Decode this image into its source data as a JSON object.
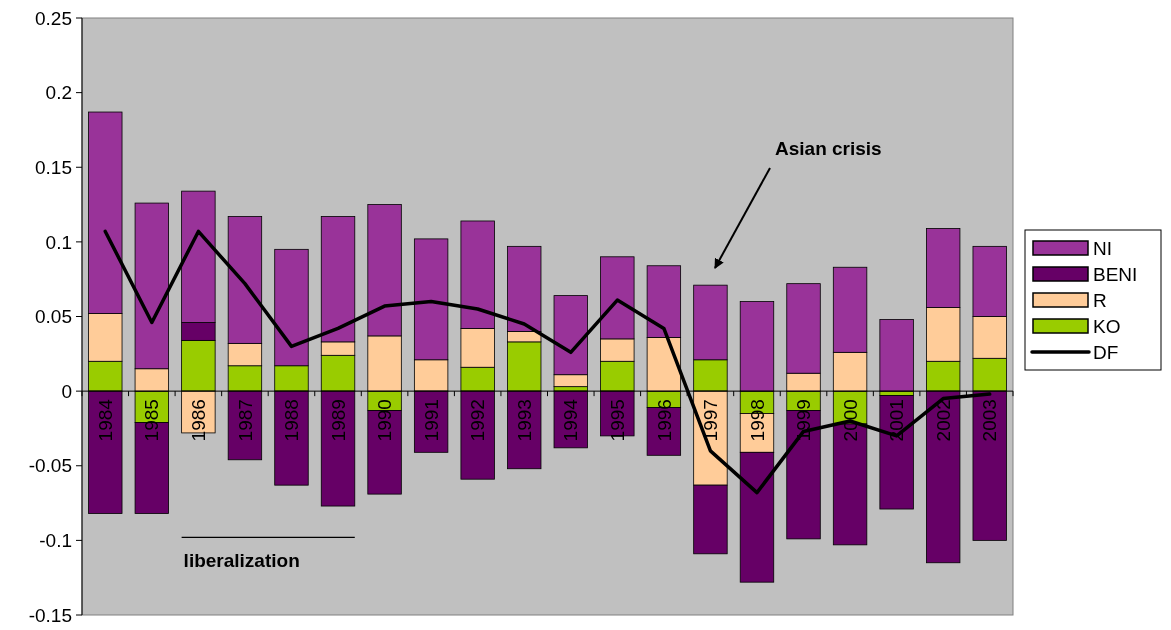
{
  "chart_data": {
    "type": "bar",
    "stacked": true,
    "categories": [
      "1984",
      "1985",
      "1986",
      "1987",
      "1988",
      "1989",
      "1990",
      "1991",
      "1992",
      "1993",
      "1994",
      "1995",
      "1996",
      "1997",
      "1998",
      "1999",
      "2000",
      "2001",
      "2002",
      "2003"
    ],
    "series": [
      {
        "name": "KO",
        "color": "#99cc00",
        "values": [
          0.02,
          -0.021,
          0.034,
          0.017,
          0.017,
          0.024,
          -0.013,
          null,
          0.016,
          0.033,
          0.003,
          0.02,
          -0.011,
          0.021,
          -0.015,
          -0.013,
          -0.022,
          -0.003,
          0.02,
          0.022
        ]
      },
      {
        "name": "R",
        "color": "#ffcc99",
        "values": [
          0.032,
          0.015,
          -0.028,
          0.015,
          null,
          0.009,
          0.037,
          0.021,
          0.026,
          0.007,
          0.008,
          0.015,
          0.036,
          -0.063,
          -0.026,
          0.012,
          0.026,
          0,
          0.036,
          0.028
        ]
      },
      {
        "name": "BENI",
        "color": "#660066",
        "values": [
          -0.082,
          -0.061,
          0.012,
          -0.046,
          -0.063,
          -0.077,
          -0.056,
          -0.041,
          -0.059,
          -0.052,
          -0.038,
          -0.03,
          -0.032,
          -0.046,
          -0.087,
          -0.086,
          -0.081,
          -0.076,
          -0.115,
          -0.1
        ]
      },
      {
        "name": "NI",
        "color": "#993399",
        "values": [
          0.135,
          0.111,
          0.088,
          0.085,
          0.078,
          0.084,
          0.088,
          0.081,
          0.072,
          0.057,
          0.053,
          0.055,
          0.048,
          0.05,
          0.06,
          0.06,
          0.057,
          0.048,
          0.053,
          0.047
        ]
      },
      {
        "name": "DF",
        "type": "line",
        "color": "#000000",
        "values": [
          0.107,
          0.046,
          0.107,
          0.072,
          0.03,
          0.042,
          0.057,
          0.06,
          0.055,
          0.045,
          0.026,
          0.061,
          0.042,
          -0.04,
          -0.068,
          -0.027,
          -0.02,
          -0.03,
          -0.005,
          -0.002
        ]
      }
    ],
    "ylim": [
      -0.15,
      0.25
    ],
    "yticks": [
      -0.15,
      -0.1,
      -0.05,
      0,
      0.05,
      0.1,
      0.15,
      0.2,
      0.25
    ],
    "legend": "right",
    "grid": false,
    "marker": "none",
    "annotations": [
      "Asian crisis",
      "liberalization"
    ]
  }
}
